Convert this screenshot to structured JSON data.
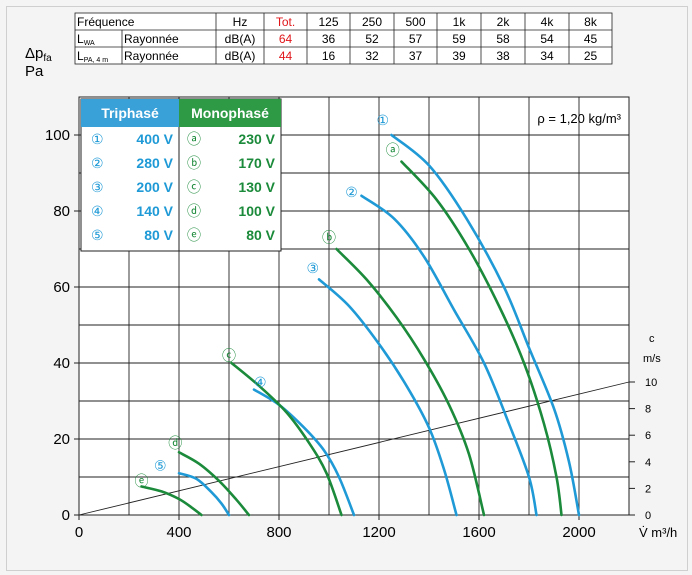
{
  "sound_table": {
    "freq_label": "Fréquence",
    "unit_header": "Hz",
    "total_header": "Tot.",
    "bands": [
      "125",
      "250",
      "500",
      "1k",
      "2k",
      "4k",
      "8k"
    ],
    "rows": [
      {
        "symbol": "L",
        "sub": "WA",
        "desc": "Rayonnée",
        "unit": "dB(A)",
        "total": "64",
        "values": [
          "36",
          "52",
          "57",
          "59",
          "58",
          "54",
          "45"
        ]
      },
      {
        "symbol": "L",
        "sub": "PA, 4 m",
        "desc": "Rayonnée",
        "unit": "dB(A)",
        "total": "44",
        "values": [
          "16",
          "32",
          "37",
          "39",
          "38",
          "34",
          "25"
        ]
      }
    ]
  },
  "colors": {
    "triphase": "#1f9ad6",
    "monophase": "#1b8a3a",
    "total_red": "#e0161a",
    "triphase_header_bg": "#3aa1d8",
    "monophase_header_bg": "#2e9a46"
  },
  "legend": {
    "tri_title": "Triphasé",
    "mono_title": "Monophasé",
    "rows": [
      {
        "tri_sym": "①",
        "tri_val": "400 V",
        "mono_sym": "ⓐ",
        "mono_val": "230 V"
      },
      {
        "tri_sym": "②",
        "tri_val": "280 V",
        "mono_sym": "ⓑ",
        "mono_val": "170 V"
      },
      {
        "tri_sym": "③",
        "tri_val": "200 V",
        "mono_sym": "ⓒ",
        "mono_val": "130 V"
      },
      {
        "tri_sym": "④",
        "tri_val": "140 V",
        "mono_sym": "ⓓ",
        "mono_val": "100 V"
      },
      {
        "tri_sym": "⑤",
        "tri_val": "80 V",
        "mono_sym": "ⓔ",
        "mono_val": "80 V"
      }
    ]
  },
  "chart_data": {
    "type": "line",
    "xlabel": "V̇ m³/h",
    "ylabel_main": "Δp",
    "ylabel_sub": "fa",
    "ylabel_unit": "Pa",
    "density_label": "ρ = 1,20 kg/m³",
    "xlim": [
      0,
      2200
    ],
    "ylim": [
      0,
      110
    ],
    "x_ticks": [
      0,
      400,
      800,
      1200,
      1600,
      2000
    ],
    "y_ticks": [
      0,
      20,
      40,
      60,
      80,
      100
    ],
    "grid": true,
    "velocity_axis": {
      "label_top": "c",
      "label_unit": "m/s",
      "ticks": [
        0,
        2,
        4,
        6,
        8,
        10
      ],
      "max_value": 10,
      "line_end": [
        2200,
        35
      ]
    },
    "series": [
      {
        "name": "①",
        "group": "triphase",
        "points": [
          [
            1250,
            100
          ],
          [
            1400,
            92
          ],
          [
            1550,
            78
          ],
          [
            1700,
            60
          ],
          [
            1800,
            44
          ],
          [
            1900,
            28
          ],
          [
            1960,
            14
          ],
          [
            2000,
            0
          ]
        ]
      },
      {
        "name": "②",
        "group": "triphase",
        "points": [
          [
            1130,
            84
          ],
          [
            1260,
            78
          ],
          [
            1380,
            68
          ],
          [
            1500,
            54
          ],
          [
            1620,
            40
          ],
          [
            1720,
            24
          ],
          [
            1800,
            10
          ],
          [
            1830,
            0
          ]
        ]
      },
      {
        "name": "③",
        "group": "triphase",
        "points": [
          [
            960,
            62
          ],
          [
            1080,
            55
          ],
          [
            1200,
            45
          ],
          [
            1310,
            34
          ],
          [
            1400,
            23
          ],
          [
            1460,
            12
          ],
          [
            1510,
            0
          ]
        ]
      },
      {
        "name": "④",
        "group": "triphase",
        "points": [
          [
            700,
            33
          ],
          [
            800,
            29
          ],
          [
            900,
            23
          ],
          [
            980,
            17
          ],
          [
            1040,
            10
          ],
          [
            1100,
            0
          ]
        ]
      },
      {
        "name": "⑤",
        "group": "triphase",
        "points": [
          [
            400,
            11
          ],
          [
            470,
            9.5
          ],
          [
            530,
            6
          ],
          [
            570,
            3
          ],
          [
            600,
            0
          ]
        ]
      },
      {
        "name": "ⓐ",
        "group": "monophase",
        "points": [
          [
            1290,
            93
          ],
          [
            1430,
            83
          ],
          [
            1560,
            70
          ],
          [
            1680,
            55
          ],
          [
            1780,
            40
          ],
          [
            1860,
            24
          ],
          [
            1910,
            10
          ],
          [
            1930,
            0
          ]
        ]
      },
      {
        "name": "ⓑ",
        "group": "monophase",
        "points": [
          [
            1030,
            70
          ],
          [
            1150,
            62
          ],
          [
            1270,
            52
          ],
          [
            1380,
            41
          ],
          [
            1480,
            29
          ],
          [
            1560,
            16
          ],
          [
            1620,
            0
          ]
        ]
      },
      {
        "name": "ⓒ",
        "group": "monophase",
        "points": [
          [
            610,
            40
          ],
          [
            720,
            34
          ],
          [
            830,
            27
          ],
          [
            920,
            19
          ],
          [
            990,
            11
          ],
          [
            1050,
            0
          ]
        ]
      },
      {
        "name": "ⓓ",
        "group": "monophase",
        "points": [
          [
            400,
            16.5
          ],
          [
            480,
            13.5
          ],
          [
            560,
            9
          ],
          [
            630,
            4
          ],
          [
            680,
            0
          ]
        ]
      },
      {
        "name": "ⓔ",
        "group": "monophase",
        "points": [
          [
            250,
            7.5
          ],
          [
            330,
            6.2
          ],
          [
            400,
            4.2
          ],
          [
            450,
            2
          ],
          [
            490,
            0
          ]
        ]
      }
    ],
    "label_positions": [
      {
        "name": "①",
        "x": 1215,
        "y": 104
      },
      {
        "name": "②",
        "x": 1090,
        "y": 85
      },
      {
        "name": "③",
        "x": 935,
        "y": 65
      },
      {
        "name": "④",
        "x": 725,
        "y": 35
      },
      {
        "name": "⑤",
        "x": 325,
        "y": 13
      },
      {
        "name": "ⓐ",
        "x": 1255,
        "y": 96
      },
      {
        "name": "ⓑ",
        "x": 1000,
        "y": 73
      },
      {
        "name": "ⓒ",
        "x": 600,
        "y": 42
      },
      {
        "name": "ⓓ",
        "x": 385,
        "y": 19
      },
      {
        "name": "ⓔ",
        "x": 250,
        "y": 9
      }
    ]
  }
}
